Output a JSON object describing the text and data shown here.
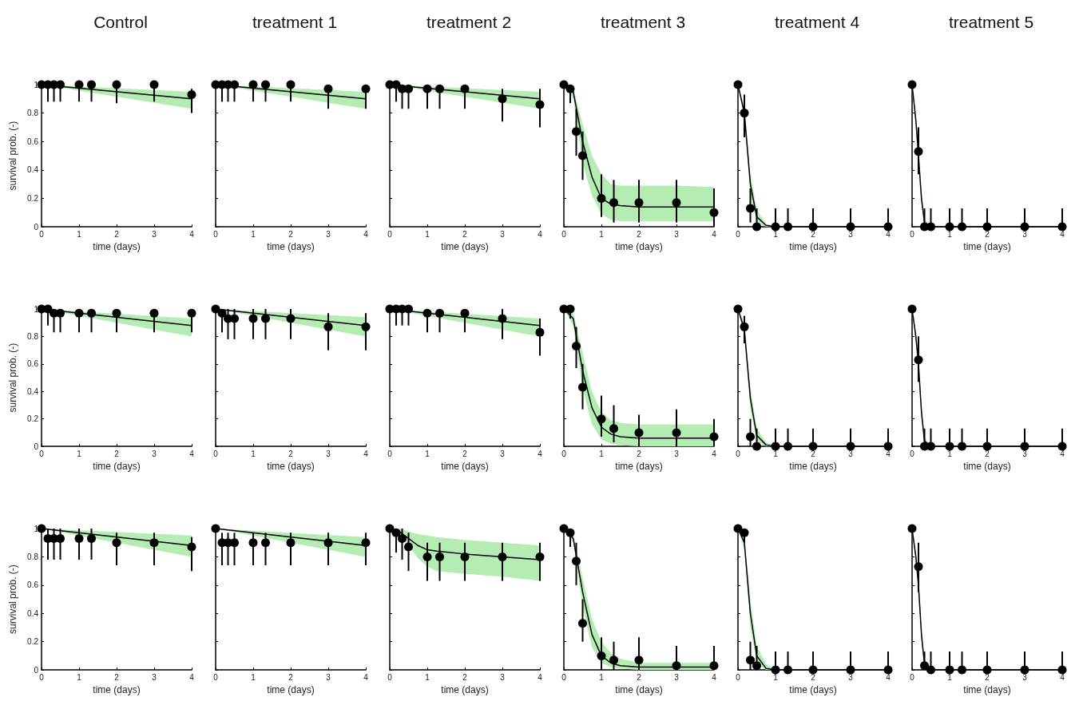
{
  "chart_data": [
    {
      "type": "scatter",
      "title": "Control",
      "xlabel": "time (days)",
      "ylabel": "survival prob. (-)",
      "x": [
        0,
        0.17,
        0.33,
        0.5,
        1,
        1.33,
        2,
        3,
        4
      ],
      "xlim": [
        0,
        4
      ],
      "xticks": [
        0,
        1,
        2,
        3,
        4
      ],
      "ylim": [
        0,
        1
      ],
      "yticks": [
        0,
        0.2,
        0.4,
        0.6,
        0.8,
        1
      ],
      "series": [
        {
          "color": "#000000",
          "marker": "circle",
          "values": [
            1,
            1,
            1,
            1,
            1,
            1,
            1,
            1,
            0.93
          ],
          "errors": [
            null,
            [
              0.88,
              1
            ],
            [
              0.88,
              1
            ],
            [
              0.88,
              1
            ],
            [
              0.88,
              1
            ],
            [
              0.88,
              1
            ],
            [
              0.87,
              1
            ],
            [
              0.88,
              1
            ],
            [
              0.8,
              0.97
            ]
          ]
        },
        {
          "type": "line",
          "marker": "none",
          "color": "#000000",
          "x": [
            0,
            4
          ],
          "values": [
            1,
            0.9
          ],
          "lower": [
            1,
            0.83
          ],
          "upper": [
            1,
            0.95
          ]
        }
      ]
    },
    {
      "type": "scatter",
      "title": "treatment 1",
      "xlabel": "time (days)",
      "x": [
        0,
        0.17,
        0.33,
        0.5,
        1,
        1.33,
        2,
        3,
        4
      ],
      "xlim": [
        0,
        4
      ],
      "xticks": [
        0,
        1,
        2,
        3,
        4
      ],
      "ylim": [
        0,
        1
      ],
      "yticks": [
        0,
        0.2,
        0.4,
        0.6,
        0.8,
        1
      ],
      "tick_labels": "x",
      "series": [
        {
          "color": "#000000",
          "marker": "circle",
          "values": [
            1,
            1,
            1,
            1,
            1,
            1,
            1,
            0.97,
            0.97
          ],
          "errors": [
            null,
            [
              0.88,
              1
            ],
            [
              0.88,
              1
            ],
            [
              0.88,
              1
            ],
            [
              0.88,
              1
            ],
            [
              0.88,
              1
            ],
            [
              0.88,
              1
            ],
            [
              0.83,
              1
            ],
            [
              0.83,
              1
            ]
          ]
        },
        {
          "type": "line",
          "marker": "none",
          "color": "#000000",
          "x": [
            0,
            4
          ],
          "values": [
            1,
            0.9
          ],
          "lower": [
            1,
            0.83
          ],
          "upper": [
            1,
            0.95
          ]
        }
      ]
    },
    {
      "type": "scatter",
      "title": "treatment 2",
      "xlabel": "time (days)",
      "x": [
        0,
        0.17,
        0.33,
        0.5,
        1,
        1.33,
        2,
        3,
        4
      ],
      "xlim": [
        0,
        4
      ],
      "xticks": [
        0,
        1,
        2,
        3,
        4
      ],
      "ylim": [
        0,
        1
      ],
      "yticks": [
        0,
        0.2,
        0.4,
        0.6,
        0.8,
        1
      ],
      "tick_labels": "x",
      "series": [
        {
          "color": "#000000",
          "marker": "circle",
          "values": [
            1,
            1,
            0.97,
            0.97,
            0.97,
            0.97,
            0.97,
            0.9,
            0.86
          ],
          "errors": [
            null,
            [
              0.88,
              1
            ],
            [
              0.83,
              1
            ],
            [
              0.83,
              1
            ],
            [
              0.83,
              1
            ],
            [
              0.83,
              1
            ],
            [
              0.83,
              1
            ],
            [
              0.74,
              0.97
            ],
            [
              0.7,
              0.97
            ]
          ]
        },
        {
          "type": "line",
          "marker": "none",
          "color": "#000000",
          "x": [
            0,
            4
          ],
          "values": [
            1,
            0.9
          ],
          "lower": [
            1,
            0.83
          ],
          "upper": [
            1,
            0.95
          ]
        }
      ]
    },
    {
      "type": "scatter",
      "title": "treatment 3",
      "xlabel": "time (days)",
      "x": [
        0,
        0.17,
        0.33,
        0.5,
        1,
        1.33,
        2,
        3,
        4
      ],
      "xlim": [
        0,
        4
      ],
      "xticks": [
        0,
        1,
        2,
        3,
        4
      ],
      "ylim": [
        0,
        1
      ],
      "yticks": [
        0,
        0.2,
        0.4,
        0.6,
        0.8,
        1
      ],
      "tick_labels": "x",
      "series": [
        {
          "color": "#000000",
          "marker": "circle",
          "values": [
            1,
            0.97,
            0.67,
            0.5,
            0.2,
            0.17,
            0.17,
            0.17,
            0.1
          ],
          "errors": [
            null,
            [
              0.87,
              1
            ],
            [
              0.5,
              0.83
            ],
            [
              0.33,
              0.67
            ],
            [
              0.07,
              0.37
            ],
            [
              0.03,
              0.33
            ],
            [
              0.03,
              0.33
            ],
            [
              0.03,
              0.33
            ],
            [
              0,
              0.27
            ]
          ]
        },
        {
          "type": "line",
          "marker": "none",
          "color": "#000000",
          "x": [
            0,
            0.25,
            0.5,
            0.75,
            1,
            1.25,
            1.5,
            2,
            3,
            4
          ],
          "values": [
            1,
            0.95,
            0.6,
            0.35,
            0.2,
            0.16,
            0.15,
            0.14,
            0.14,
            0.14
          ],
          "lower": [
            1,
            0.9,
            0.45,
            0.22,
            0.09,
            0.05,
            0.04,
            0.04,
            0.04,
            0.04
          ],
          "upper": [
            1,
            0.98,
            0.72,
            0.5,
            0.37,
            0.3,
            0.29,
            0.29,
            0.29,
            0.28
          ]
        }
      ]
    },
    {
      "type": "scatter",
      "title": "treatment 4",
      "xlabel": "time (days)",
      "x": [
        0,
        0.17,
        0.33,
        0.5,
        1,
        1.33,
        2,
        3,
        4
      ],
      "xlim": [
        0,
        4
      ],
      "xticks": [
        0,
        1,
        2,
        3,
        4
      ],
      "ylim": [
        0,
        1
      ],
      "yticks": [
        0,
        0.2,
        0.4,
        0.6,
        0.8,
        1
      ],
      "tick_labels": "x",
      "series": [
        {
          "color": "#000000",
          "marker": "circle",
          "values": [
            1,
            0.8,
            0.13,
            0,
            0,
            0,
            0,
            0,
            0
          ],
          "errors": [
            null,
            [
              0.63,
              0.93
            ],
            [
              0.03,
              0.27
            ],
            [
              0,
              0.13
            ],
            [
              0,
              0.13
            ],
            [
              0,
              0.13
            ],
            [
              0,
              0.13
            ],
            [
              0,
              0.13
            ],
            [
              0,
              0.13
            ]
          ]
        },
        {
          "type": "line",
          "marker": "none",
          "color": "#000000",
          "x": [
            0,
            0.17,
            0.33,
            0.5,
            0.75,
            1,
            4
          ],
          "values": [
            1,
            0.8,
            0.3,
            0.07,
            0.01,
            0,
            0
          ],
          "lower": [
            1,
            0.75,
            0.22,
            0.03,
            0,
            0,
            0
          ],
          "upper": [
            1,
            0.85,
            0.38,
            0.12,
            0.02,
            0,
            0
          ]
        }
      ]
    },
    {
      "type": "scatter",
      "title": "treatment 5",
      "xlabel": "time (days)",
      "x": [
        0,
        0.17,
        0.33,
        0.5,
        1,
        1.33,
        2,
        3,
        4
      ],
      "xlim": [
        0,
        4
      ],
      "xticks": [
        0,
        1,
        2,
        3,
        4
      ],
      "ylim": [
        0,
        1
      ],
      "yticks": [
        0,
        0.2,
        0.4,
        0.6,
        0.8,
        1
      ],
      "tick_labels": "x",
      "series": [
        {
          "color": "#000000",
          "marker": "circle",
          "values": [
            1,
            0.53,
            0,
            0,
            0,
            0,
            0,
            0,
            0
          ],
          "errors": [
            null,
            [
              0.37,
              0.7
            ],
            [
              0,
              0.13
            ],
            [
              0,
              0.13
            ],
            [
              0,
              0.13
            ],
            [
              0,
              0.13
            ],
            [
              0,
              0.13
            ],
            [
              0,
              0.13
            ],
            [
              0,
              0.13
            ]
          ]
        },
        {
          "type": "line",
          "marker": "none",
          "color": "#000000",
          "x": [
            0,
            0.1,
            0.17,
            0.25,
            0.33,
            0.5,
            4
          ],
          "values": [
            1,
            0.75,
            0.5,
            0.2,
            0.03,
            0,
            0
          ],
          "lower": [
            1,
            0.7,
            0.45,
            0.15,
            0.01,
            0,
            0
          ],
          "upper": [
            1,
            0.8,
            0.55,
            0.25,
            0.06,
            0,
            0
          ]
        }
      ]
    },
    {
      "type": "scatter",
      "xlabel": "time (days)",
      "ylabel": "survival prob. (-)",
      "x": [
        0,
        0.17,
        0.33,
        0.5,
        1,
        1.33,
        2,
        3,
        4
      ],
      "xlim": [
        0,
        4
      ],
      "xticks": [
        0,
        1,
        2,
        3,
        4
      ],
      "ylim": [
        0,
        1
      ],
      "yticks": [
        0,
        0.2,
        0.4,
        0.6,
        0.8,
        1
      ],
      "series": [
        {
          "color": "#000000",
          "marker": "circle",
          "values": [
            1,
            1,
            0.97,
            0.97,
            0.97,
            0.97,
            0.97,
            0.97,
            0.97
          ],
          "errors": [
            null,
            [
              0.88,
              1
            ],
            [
              0.83,
              1
            ],
            [
              0.83,
              1
            ],
            [
              0.83,
              1
            ],
            [
              0.83,
              1
            ],
            [
              0.83,
              1
            ],
            [
              0.83,
              1
            ],
            [
              0.83,
              1
            ]
          ]
        },
        {
          "type": "line",
          "marker": "none",
          "color": "#000000",
          "x": [
            0,
            4
          ],
          "values": [
            1,
            0.88
          ],
          "lower": [
            1,
            0.8
          ],
          "upper": [
            1,
            0.93
          ]
        }
      ]
    },
    {
      "type": "scatter",
      "xlabel": "time (days)",
      "x": [
        0,
        0.17,
        0.33,
        0.5,
        1,
        1.33,
        2,
        3,
        4
      ],
      "xlim": [
        0,
        4
      ],
      "xticks": [
        0,
        1,
        2,
        3,
        4
      ],
      "ylim": [
        0,
        1
      ],
      "yticks": [
        0,
        0.2,
        0.4,
        0.6,
        0.8,
        1
      ],
      "tick_labels": "x",
      "series": [
        {
          "color": "#000000",
          "marker": "circle",
          "values": [
            1,
            0.97,
            0.93,
            0.93,
            0.93,
            0.93,
            0.93,
            0.87,
            0.87
          ],
          "errors": [
            null,
            [
              0.83,
              1
            ],
            [
              0.78,
              1
            ],
            [
              0.78,
              1
            ],
            [
              0.78,
              1
            ],
            [
              0.78,
              1
            ],
            [
              0.78,
              1
            ],
            [
              0.7,
              0.97
            ],
            [
              0.7,
              0.97
            ]
          ]
        },
        {
          "type": "line",
          "marker": "none",
          "color": "#000000",
          "x": [
            0,
            4
          ],
          "values": [
            1,
            0.88
          ],
          "lower": [
            1,
            0.8
          ],
          "upper": [
            1,
            0.94
          ]
        }
      ]
    },
    {
      "type": "scatter",
      "xlabel": "time (days)",
      "x": [
        0,
        0.17,
        0.33,
        0.5,
        1,
        1.33,
        2,
        3,
        4
      ],
      "xlim": [
        0,
        4
      ],
      "xticks": [
        0,
        1,
        2,
        3,
        4
      ],
      "ylim": [
        0,
        1
      ],
      "yticks": [
        0,
        0.2,
        0.4,
        0.6,
        0.8,
        1
      ],
      "tick_labels": "x",
      "series": [
        {
          "color": "#000000",
          "marker": "circle",
          "values": [
            1,
            1,
            1,
            1,
            0.97,
            0.97,
            0.97,
            0.93,
            0.83
          ],
          "errors": [
            null,
            [
              0.88,
              1
            ],
            [
              0.88,
              1
            ],
            [
              0.88,
              1
            ],
            [
              0.83,
              1
            ],
            [
              0.83,
              1
            ],
            [
              0.83,
              1
            ],
            [
              0.78,
              1
            ],
            [
              0.66,
              0.93
            ]
          ]
        },
        {
          "type": "line",
          "marker": "none",
          "color": "#000000",
          "x": [
            0,
            4
          ],
          "values": [
            1,
            0.88
          ],
          "lower": [
            1,
            0.8
          ],
          "upper": [
            1,
            0.93
          ]
        }
      ]
    },
    {
      "type": "scatter",
      "xlabel": "time (days)",
      "x": [
        0,
        0.17,
        0.33,
        0.5,
        1,
        1.33,
        2,
        3,
        4
      ],
      "xlim": [
        0,
        4
      ],
      "xticks": [
        0,
        1,
        2,
        3,
        4
      ],
      "ylim": [
        0,
        1
      ],
      "yticks": [
        0,
        0.2,
        0.4,
        0.6,
        0.8,
        1
      ],
      "tick_labels": "x",
      "series": [
        {
          "color": "#000000",
          "marker": "circle",
          "values": [
            1,
            1,
            0.73,
            0.43,
            0.2,
            0.13,
            0.1,
            0.1,
            0.07
          ],
          "errors": [
            null,
            [
              0.93,
              1
            ],
            [
              0.57,
              0.87
            ],
            [
              0.27,
              0.6
            ],
            [
              0.07,
              0.37
            ],
            [
              0.03,
              0.3
            ],
            [
              0,
              0.23
            ],
            [
              0,
              0.27
            ],
            [
              0,
              0.2
            ]
          ]
        },
        {
          "type": "line",
          "marker": "none",
          "color": "#000000",
          "x": [
            0,
            0.25,
            0.5,
            0.75,
            1,
            1.25,
            1.5,
            2,
            3,
            4
          ],
          "values": [
            1,
            0.93,
            0.55,
            0.28,
            0.14,
            0.09,
            0.07,
            0.06,
            0.06,
            0.06
          ],
          "lower": [
            1,
            0.88,
            0.42,
            0.16,
            0.05,
            0.02,
            0.01,
            0,
            0,
            0
          ],
          "upper": [
            1,
            0.97,
            0.68,
            0.4,
            0.25,
            0.19,
            0.17,
            0.16,
            0.16,
            0.16
          ]
        }
      ]
    },
    {
      "type": "scatter",
      "xlabel": "time (days)",
      "x": [
        0,
        0.17,
        0.33,
        0.5,
        1,
        1.33,
        2,
        3,
        4
      ],
      "xlim": [
        0,
        4
      ],
      "xticks": [
        0,
        1,
        2,
        3,
        4
      ],
      "ylim": [
        0,
        1
      ],
      "yticks": [
        0,
        0.2,
        0.4,
        0.6,
        0.8,
        1
      ],
      "tick_labels": "x",
      "series": [
        {
          "color": "#000000",
          "marker": "circle",
          "values": [
            1,
            0.87,
            0.07,
            0,
            0,
            0,
            0,
            0,
            0
          ],
          "errors": [
            null,
            [
              0.75,
              0.95
            ],
            [
              0,
              0.2
            ],
            [
              0,
              0.13
            ],
            [
              0,
              0.13
            ],
            [
              0,
              0.13
            ],
            [
              0,
              0.13
            ],
            [
              0,
              0.13
            ],
            [
              0,
              0.13
            ]
          ]
        },
        {
          "type": "line",
          "marker": "none",
          "color": "#000000",
          "x": [
            0,
            0.17,
            0.33,
            0.5,
            0.75,
            1,
            4
          ],
          "values": [
            1,
            0.85,
            0.35,
            0.08,
            0.01,
            0,
            0
          ],
          "lower": [
            1,
            0.8,
            0.27,
            0.04,
            0,
            0,
            0
          ],
          "upper": [
            1,
            0.9,
            0.43,
            0.13,
            0.03,
            0,
            0
          ]
        }
      ]
    },
    {
      "type": "scatter",
      "xlabel": "time (days)",
      "x": [
        0,
        0.17,
        0.33,
        0.5,
        1,
        1.33,
        2,
        3,
        4
      ],
      "xlim": [
        0,
        4
      ],
      "xticks": [
        0,
        1,
        2,
        3,
        4
      ],
      "ylim": [
        0,
        1
      ],
      "yticks": [
        0,
        0.2,
        0.4,
        0.6,
        0.8,
        1
      ],
      "tick_labels": "x",
      "series": [
        {
          "color": "#000000",
          "marker": "circle",
          "values": [
            1,
            0.63,
            0,
            0,
            0,
            0,
            0,
            0,
            0
          ],
          "errors": [
            null,
            [
              0.47,
              0.8
            ],
            [
              0,
              0.13
            ],
            [
              0,
              0.13
            ],
            [
              0,
              0.13
            ],
            [
              0,
              0.13
            ],
            [
              0,
              0.13
            ],
            [
              0,
              0.13
            ],
            [
              0,
              0.13
            ]
          ]
        },
        {
          "type": "line",
          "marker": "none",
          "color": "#000000",
          "x": [
            0,
            0.1,
            0.17,
            0.25,
            0.33,
            0.5,
            4
          ],
          "values": [
            1,
            0.8,
            0.6,
            0.25,
            0.04,
            0,
            0
          ],
          "lower": [
            1,
            0.75,
            0.55,
            0.2,
            0.02,
            0,
            0
          ],
          "upper": [
            1,
            0.85,
            0.65,
            0.3,
            0.07,
            0,
            0
          ]
        }
      ]
    },
    {
      "type": "scatter",
      "xlabel": "time (days)",
      "ylabel": "survival prob. (-)",
      "x": [
        0,
        0.17,
        0.33,
        0.5,
        1,
        1.33,
        2,
        3,
        4
      ],
      "xlim": [
        0,
        4
      ],
      "xticks": [
        0,
        1,
        2,
        3,
        4
      ],
      "ylim": [
        0,
        1
      ],
      "yticks": [
        0,
        0.2,
        0.4,
        0.6,
        0.8,
        1
      ],
      "series": [
        {
          "color": "#000000",
          "marker": "circle",
          "values": [
            1,
            0.93,
            0.93,
            0.93,
            0.93,
            0.93,
            0.9,
            0.9,
            0.87
          ],
          "errors": [
            null,
            [
              0.78,
              1
            ],
            [
              0.78,
              1
            ],
            [
              0.78,
              1
            ],
            [
              0.78,
              1
            ],
            [
              0.78,
              1
            ],
            [
              0.74,
              0.97
            ],
            [
              0.74,
              0.97
            ],
            [
              0.7,
              0.94
            ]
          ]
        },
        {
          "type": "line",
          "marker": "none",
          "color": "#000000",
          "x": [
            0,
            4
          ],
          "values": [
            1,
            0.88
          ],
          "lower": [
            1,
            0.8
          ],
          "upper": [
            1,
            0.95
          ]
        }
      ]
    },
    {
      "type": "scatter",
      "xlabel": "time (days)",
      "x": [
        0,
        0.17,
        0.33,
        0.5,
        1,
        1.33,
        2,
        3,
        4
      ],
      "xlim": [
        0,
        4
      ],
      "xticks": [
        0,
        1,
        2,
        3,
        4
      ],
      "ylim": [
        0,
        1
      ],
      "yticks": [
        0,
        0.2,
        0.4,
        0.6,
        0.8,
        1
      ],
      "tick_labels": "x",
      "series": [
        {
          "color": "#000000",
          "marker": "circle",
          "values": [
            1,
            0.9,
            0.9,
            0.9,
            0.9,
            0.9,
            0.9,
            0.9,
            0.9
          ],
          "errors": [
            null,
            [
              0.74,
              0.97
            ],
            [
              0.74,
              0.97
            ],
            [
              0.74,
              0.97
            ],
            [
              0.74,
              0.97
            ],
            [
              0.74,
              0.97
            ],
            [
              0.74,
              0.97
            ],
            [
              0.74,
              0.97
            ],
            [
              0.74,
              0.97
            ]
          ]
        },
        {
          "type": "line",
          "marker": "none",
          "color": "#000000",
          "x": [
            0,
            4
          ],
          "values": [
            1,
            0.88
          ],
          "lower": [
            1,
            0.8
          ],
          "upper": [
            1,
            0.94
          ]
        }
      ]
    },
    {
      "type": "scatter",
      "xlabel": "time (days)",
      "x": [
        0,
        0.17,
        0.33,
        0.5,
        1,
        1.33,
        2,
        3,
        4
      ],
      "xlim": [
        0,
        4
      ],
      "xticks": [
        0,
        1,
        2,
        3,
        4
      ],
      "ylim": [
        0,
        1
      ],
      "yticks": [
        0,
        0.2,
        0.4,
        0.6,
        0.8,
        1
      ],
      "tick_labels": "x",
      "series": [
        {
          "color": "#000000",
          "marker": "circle",
          "values": [
            1,
            0.97,
            0.93,
            0.87,
            0.8,
            0.8,
            0.8,
            0.8,
            0.8
          ],
          "errors": [
            null,
            [
              0.83,
              1
            ],
            [
              0.78,
              1
            ],
            [
              0.7,
              0.97
            ],
            [
              0.63,
              0.9
            ],
            [
              0.63,
              0.9
            ],
            [
              0.63,
              0.9
            ],
            [
              0.63,
              0.9
            ],
            [
              0.63,
              0.9
            ]
          ]
        },
        {
          "type": "line",
          "marker": "none",
          "color": "#000000",
          "x": [
            0,
            0.25,
            0.5,
            0.75,
            1,
            1.25,
            2,
            3,
            4
          ],
          "values": [
            1,
            0.98,
            0.93,
            0.88,
            0.85,
            0.84,
            0.82,
            0.8,
            0.78
          ],
          "lower": [
            1,
            0.97,
            0.88,
            0.79,
            0.73,
            0.7,
            0.68,
            0.66,
            0.63
          ],
          "upper": [
            1,
            1,
            0.98,
            0.96,
            0.95,
            0.94,
            0.92,
            0.9,
            0.88
          ]
        }
      ]
    },
    {
      "type": "scatter",
      "xlabel": "time (days)",
      "x": [
        0,
        0.17,
        0.33,
        0.5,
        1,
        1.33,
        2,
        3,
        4
      ],
      "xlim": [
        0,
        4
      ],
      "xticks": [
        0,
        1,
        2,
        3,
        4
      ],
      "ylim": [
        0,
        1
      ],
      "yticks": [
        0,
        0.2,
        0.4,
        0.6,
        0.8,
        1
      ],
      "tick_labels": "x",
      "series": [
        {
          "color": "#000000",
          "marker": "circle",
          "values": [
            1,
            0.97,
            0.77,
            0.33,
            0.1,
            0.07,
            0.07,
            0.03,
            0.03
          ],
          "errors": [
            null,
            [
              0.87,
              1
            ],
            [
              0.6,
              0.9
            ],
            [
              0.2,
              0.5
            ],
            [
              0,
              0.23
            ],
            [
              0,
              0.2
            ],
            [
              0,
              0.23
            ],
            [
              0,
              0.17
            ],
            [
              0,
              0.17
            ]
          ]
        },
        {
          "type": "line",
          "marker": "none",
          "color": "#000000",
          "x": [
            0,
            0.25,
            0.5,
            0.75,
            1,
            1.25,
            1.5,
            2,
            3,
            4
          ],
          "values": [
            1,
            0.93,
            0.55,
            0.25,
            0.1,
            0.05,
            0.03,
            0.02,
            0.02,
            0.02
          ],
          "lower": [
            1,
            0.9,
            0.45,
            0.16,
            0.05,
            0.02,
            0.01,
            0,
            0,
            0
          ],
          "upper": [
            1,
            0.96,
            0.65,
            0.36,
            0.2,
            0.12,
            0.08,
            0.05,
            0.05,
            0.05
          ]
        }
      ]
    },
    {
      "type": "scatter",
      "xlabel": "time (days)",
      "x": [
        0,
        0.17,
        0.33,
        0.5,
        1,
        1.33,
        2,
        3,
        4
      ],
      "xlim": [
        0,
        4
      ],
      "xticks": [
        0,
        1,
        2,
        3,
        4
      ],
      "ylim": [
        0,
        1
      ],
      "yticks": [
        0,
        0.2,
        0.4,
        0.6,
        0.8,
        1
      ],
      "tick_labels": "x",
      "series": [
        {
          "color": "#000000",
          "marker": "circle",
          "values": [
            1,
            0.97,
            0.07,
            0.03,
            0,
            0,
            0,
            0,
            0
          ],
          "errors": [
            null,
            [
              0.9,
              1
            ],
            [
              0,
              0.2
            ],
            [
              0,
              0.17
            ],
            [
              0,
              0.13
            ],
            [
              0,
              0.13
            ],
            [
              0,
              0.13
            ],
            [
              0,
              0.13
            ],
            [
              0,
              0.13
            ]
          ]
        },
        {
          "type": "line",
          "marker": "none",
          "color": "#000000",
          "x": [
            0,
            0.17,
            0.33,
            0.5,
            0.75,
            1,
            4
          ],
          "values": [
            1,
            0.9,
            0.4,
            0.1,
            0.01,
            0,
            0
          ],
          "lower": [
            1,
            0.85,
            0.3,
            0.05,
            0,
            0,
            0
          ],
          "upper": [
            1,
            0.95,
            0.5,
            0.17,
            0.04,
            0,
            0
          ]
        }
      ]
    },
    {
      "type": "scatter",
      "xlabel": "time (days)",
      "x": [
        0,
        0.17,
        0.33,
        0.5,
        1,
        1.33,
        2,
        3,
        4
      ],
      "xlim": [
        0,
        4
      ],
      "xticks": [
        0,
        1,
        2,
        3,
        4
      ],
      "ylim": [
        0,
        1
      ],
      "yticks": [
        0,
        0.2,
        0.4,
        0.6,
        0.8,
        1
      ],
      "tick_labels": "x",
      "series": [
        {
          "color": "#000000",
          "marker": "circle",
          "values": [
            1,
            0.73,
            0.03,
            0,
            0,
            0,
            0,
            0,
            0
          ],
          "errors": [
            null,
            [
              0.55,
              0.9
            ],
            [
              0,
              0.13
            ],
            [
              0,
              0.13
            ],
            [
              0,
              0.13
            ],
            [
              0,
              0.13
            ],
            [
              0,
              0.13
            ],
            [
              0,
              0.13
            ],
            [
              0,
              0.13
            ]
          ]
        },
        {
          "type": "line",
          "marker": "none",
          "color": "#000000",
          "x": [
            0,
            0.1,
            0.17,
            0.25,
            0.33,
            0.5,
            4
          ],
          "values": [
            1,
            0.8,
            0.6,
            0.25,
            0.04,
            0,
            0
          ],
          "lower": [
            1,
            0.75,
            0.55,
            0.2,
            0.02,
            0,
            0
          ],
          "upper": [
            1,
            0.85,
            0.65,
            0.3,
            0.07,
            0,
            0
          ]
        }
      ]
    }
  ]
}
